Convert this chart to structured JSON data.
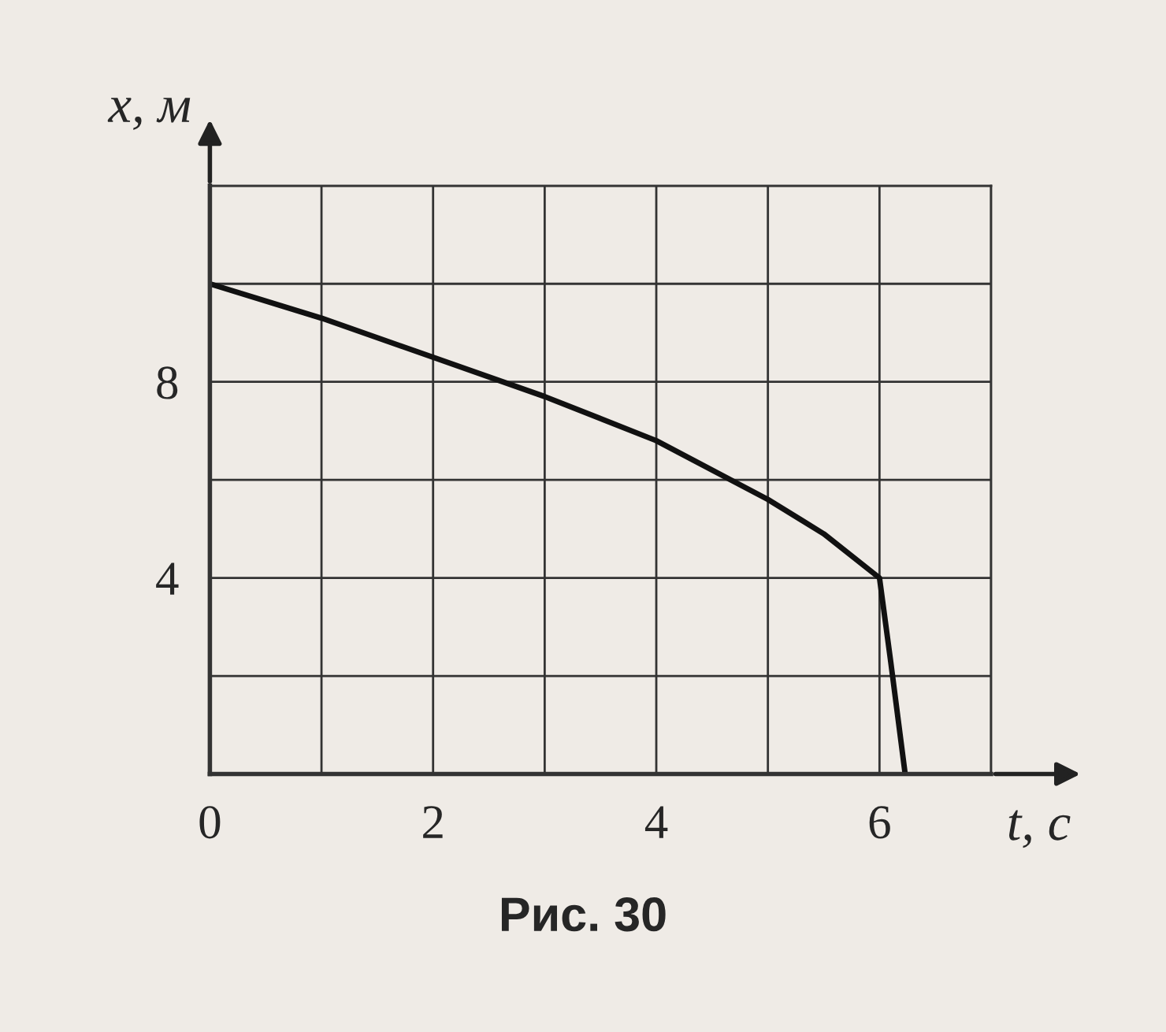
{
  "chart_data": {
    "type": "line",
    "xlabel": "t, с",
    "ylabel": "x, м",
    "annotations": [
      "Рис. 30"
    ],
    "x": [
      0,
      1,
      2,
      3,
      4,
      5,
      5.5,
      6,
      6.1,
      6.23
    ],
    "series": [
      {
        "color": "#111111",
        "values": [
          10,
          9.3,
          8.5,
          7.7,
          6.8,
          5.6,
          4.9,
          4.0,
          2.3,
          0
        ]
      }
    ],
    "xlim": [
      0,
      7
    ],
    "ylim": [
      0,
      12
    ],
    "xticks": [
      0,
      {
        "value": 1,
        "label": null
      },
      2,
      {
        "value": 3,
        "label": null
      },
      4,
      {
        "value": 5,
        "label": null
      },
      6,
      {
        "value": 7,
        "label": null
      }
    ],
    "yticks": [
      {
        "value": 0,
        "label": null
      },
      {
        "value": 2,
        "label": null
      },
      4,
      {
        "value": 6,
        "label": null
      },
      8,
      {
        "value": 10,
        "label": null
      },
      {
        "value": 12,
        "label": null
      }
    ],
    "grid": true,
    "marker": "none",
    "line_style": "solid"
  }
}
